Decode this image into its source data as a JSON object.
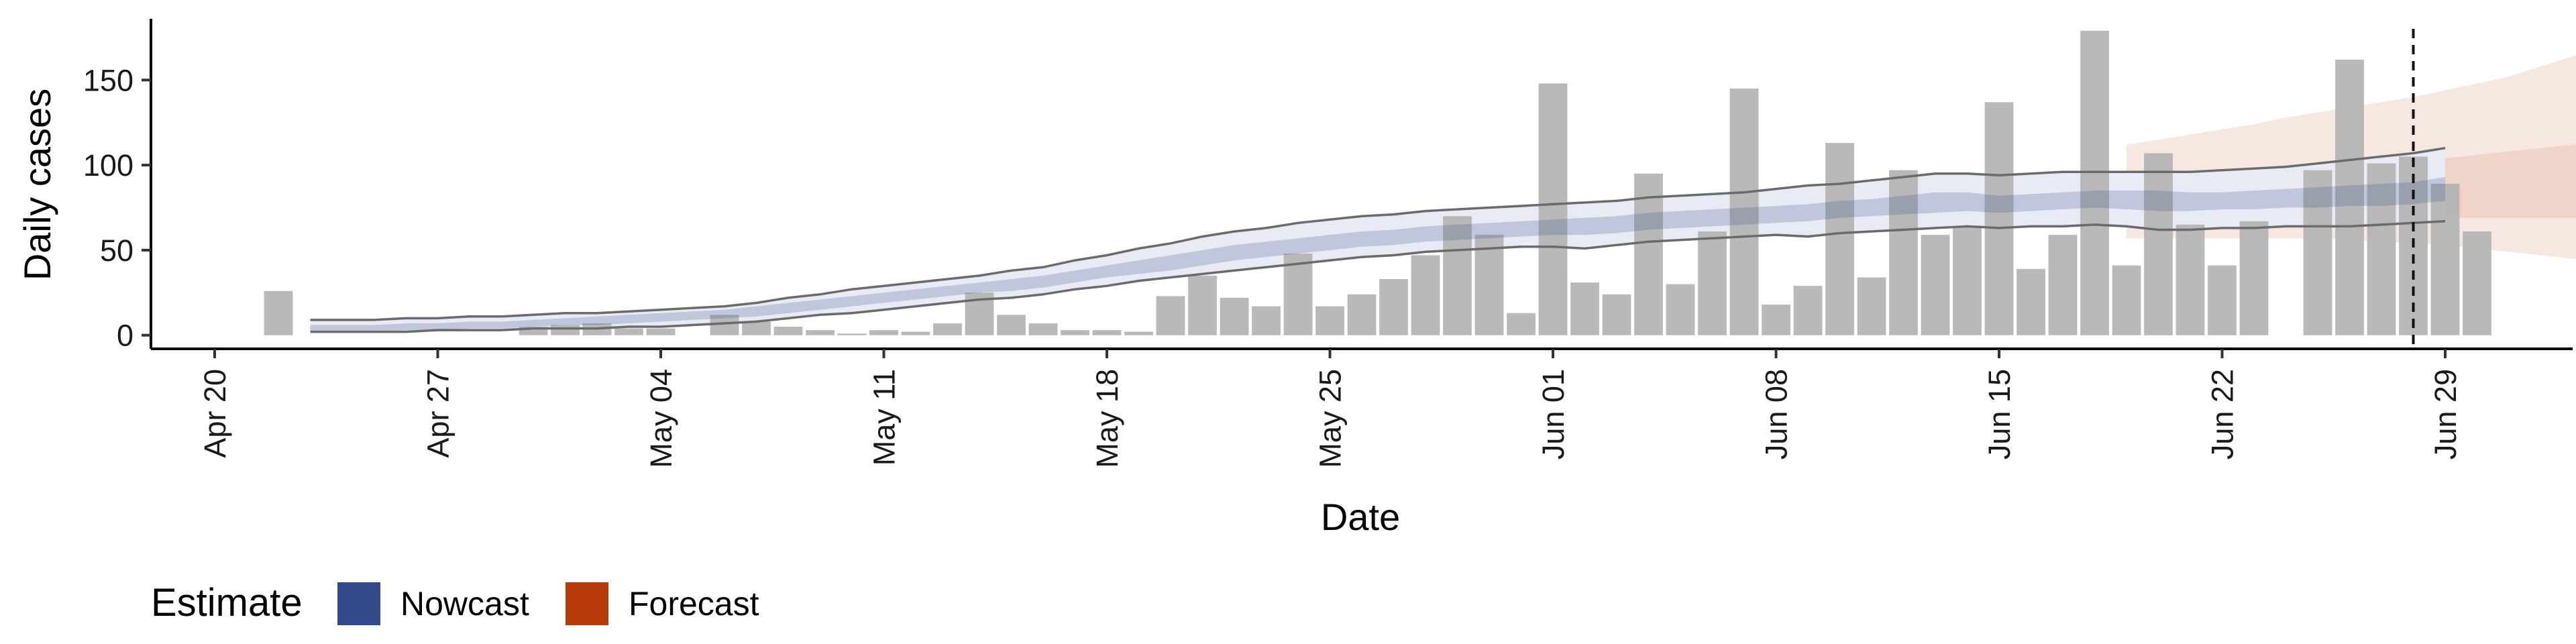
{
  "chart_data": {
    "type": "bar",
    "xlabel": "Date",
    "ylabel": "Daily cases",
    "ylim": [
      -8,
      186
    ],
    "xlim": [
      "2020-04-18",
      "2020-07-03"
    ],
    "x_ticks": [
      {
        "date": "2020-04-20",
        "label": "Apr 20"
      },
      {
        "date": "2020-04-27",
        "label": "Apr 27"
      },
      {
        "date": "2020-05-04",
        "label": "May 04"
      },
      {
        "date": "2020-05-11",
        "label": "May 11"
      },
      {
        "date": "2020-05-18",
        "label": "May 18"
      },
      {
        "date": "2020-05-25",
        "label": "May 25"
      },
      {
        "date": "2020-06-01",
        "label": "Jun 01"
      },
      {
        "date": "2020-06-08",
        "label": "Jun 08"
      },
      {
        "date": "2020-06-15",
        "label": "Jun 15"
      },
      {
        "date": "2020-06-22",
        "label": "Jun 22"
      },
      {
        "date": "2020-06-29",
        "label": "Jun 29"
      }
    ],
    "y_ticks": [
      0,
      50,
      100,
      150
    ],
    "grid": false,
    "legend": {
      "title": "Estimate",
      "position": "bottom-left",
      "items": [
        {
          "label": "Nowcast",
          "color": "#32498a"
        },
        {
          "label": "Forecast",
          "color": "#b73a0a"
        }
      ]
    },
    "bar_color": "#b3b3b3",
    "vline_date": "2020-06-28",
    "observed": {
      "start": "2020-04-22",
      "values": [
        26,
        0,
        0,
        0,
        0,
        0,
        0,
        0,
        5,
        6,
        7,
        4,
        4,
        0,
        12,
        8,
        5,
        3,
        1,
        3,
        2,
        7,
        25,
        12,
        7,
        3,
        3,
        2,
        23,
        35,
        22,
        17,
        48,
        17,
        24,
        33,
        47,
        70,
        59,
        13,
        148,
        31,
        24,
        95,
        30,
        61,
        145,
        18,
        29,
        113,
        34,
        97,
        59,
        64,
        137,
        39,
        59,
        179,
        41,
        107,
        65,
        41,
        67,
        0,
        97,
        162,
        101,
        105,
        89,
        61
      ]
    },
    "nowcast": {
      "start": "2020-04-23",
      "median": [
        4,
        4,
        4,
        5,
        5,
        6,
        6,
        7,
        8,
        8,
        9,
        10,
        11,
        12,
        14,
        16,
        18,
        20,
        22,
        24,
        26,
        28,
        30,
        32,
        35,
        38,
        41,
        43,
        46,
        49,
        51,
        53,
        55,
        57,
        58,
        60,
        61,
        62,
        63,
        64,
        64,
        65,
        67,
        68,
        69,
        70,
        71,
        72,
        74,
        75,
        76,
        78,
        78,
        77,
        78,
        79,
        80,
        80,
        79,
        79,
        79,
        80,
        80,
        81,
        82,
        82,
        83,
        86
      ],
      "lower_50": [
        2,
        2,
        2,
        3,
        3,
        4,
        4,
        5,
        6,
        6,
        7,
        8,
        9,
        10,
        11,
        13,
        15,
        17,
        19,
        21,
        23,
        25,
        26,
        28,
        31,
        34,
        36,
        38,
        41,
        44,
        46,
        48,
        50,
        52,
        53,
        55,
        56,
        57,
        58,
        59,
        59,
        60,
        62,
        63,
        64,
        65,
        66,
        67,
        69,
        70,
        71,
        72,
        73,
        72,
        73,
        74,
        75,
        74,
        73,
        73,
        74,
        74,
        75,
        75,
        76,
        76,
        77,
        79
      ],
      "upper_50": [
        6,
        6,
        6,
        7,
        7,
        8,
        8,
        9,
        10,
        11,
        12,
        13,
        14,
        15,
        17,
        19,
        21,
        23,
        25,
        27,
        29,
        31,
        33,
        35,
        38,
        41,
        44,
        47,
        50,
        53,
        55,
        57,
        59,
        61,
        62,
        64,
        65,
        66,
        67,
        68,
        69,
        70,
        72,
        73,
        74,
        75,
        76,
        77,
        79,
        80,
        82,
        84,
        84,
        82,
        83,
        84,
        85,
        85,
        85,
        84,
        84,
        85,
        86,
        87,
        88,
        89,
        90,
        93
      ],
      "lower_90": [
        2,
        2,
        2,
        2,
        3,
        3,
        3,
        4,
        4,
        4,
        5,
        5,
        6,
        7,
        8,
        10,
        12,
        13,
        15,
        17,
        19,
        21,
        22,
        24,
        27,
        29,
        32,
        34,
        36,
        38,
        40,
        42,
        44,
        46,
        47,
        49,
        50,
        51,
        52,
        52,
        51,
        53,
        55,
        56,
        57,
        58,
        59,
        58,
        60,
        61,
        62,
        63,
        64,
        63,
        64,
        64,
        65,
        64,
        62,
        62,
        63,
        63,
        64,
        64,
        64,
        65,
        66,
        67
      ],
      "upper_90": [
        9,
        9,
        9,
        10,
        10,
        11,
        11,
        12,
        13,
        13,
        14,
        15,
        16,
        17,
        19,
        22,
        24,
        27,
        29,
        31,
        33,
        35,
        38,
        40,
        44,
        47,
        51,
        54,
        58,
        61,
        63,
        66,
        68,
        70,
        71,
        73,
        74,
        75,
        76,
        77,
        78,
        79,
        81,
        82,
        83,
        84,
        86,
        88,
        89,
        91,
        93,
        95,
        95,
        94,
        95,
        96,
        96,
        96,
        96,
        96,
        97,
        98,
        99,
        101,
        103,
        105,
        107,
        110
      ]
    },
    "forecast": {
      "start": "2020-06-19",
      "median": [
        83,
        83,
        83,
        84,
        84,
        84,
        85,
        86,
        86,
        87,
        87,
        87,
        88,
        88,
        88,
        88,
        89
      ],
      "lower_50": [
        66,
        66,
        66,
        67,
        67,
        67,
        68,
        68,
        68,
        68,
        69,
        69,
        69,
        69,
        69,
        69,
        70
      ],
      "upper_50": [
        94,
        94,
        95,
        96,
        98,
        99,
        100,
        101,
        102,
        103,
        104,
        106,
        108,
        110,
        112,
        115,
        118
      ],
      "lower_90": [
        57,
        57,
        57,
        57,
        57,
        57,
        57,
        56,
        55,
        54,
        53,
        51,
        49,
        47,
        45,
        43,
        40
      ],
      "upper_90": [
        112,
        115,
        118,
        121,
        124,
        128,
        131,
        134,
        137,
        140,
        144,
        148,
        152,
        158,
        164,
        170,
        176
      ]
    }
  }
}
